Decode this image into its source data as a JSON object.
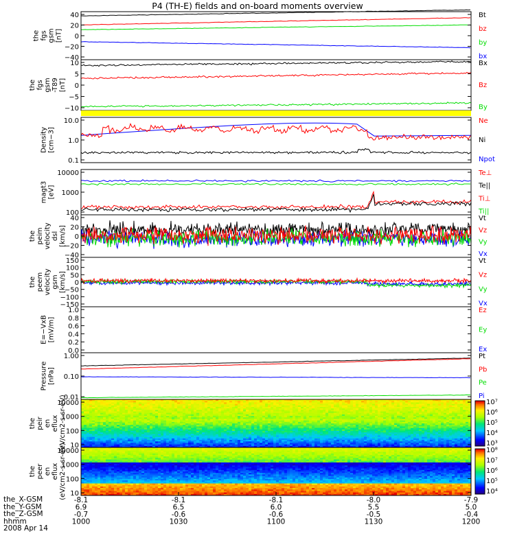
{
  "title": "P4 (TH-E) fields and on-board moments overview",
  "date_label": "2008 Apr 14",
  "colors": {
    "black": "#000000",
    "red": "#ff0000",
    "green": "#00dd00",
    "blue": "#0000ff",
    "yellow": "#ffff00"
  },
  "ephemeris": {
    "row_labels": [
      "the_X-GSM",
      "the_Y-GSM",
      "the_Z-GSM",
      "hhmm"
    ],
    "columns": [
      [
        "-8.1",
        "6.9",
        "-0.7",
        "1000"
      ],
      [
        "-8.1",
        "6.5",
        "-0.6",
        "1030"
      ],
      [
        "-8.1",
        "6.0",
        "-0.6",
        "1100"
      ],
      [
        "-8.0",
        "5.5",
        "-0.5",
        "1130"
      ],
      [
        "-7.9",
        "5.0",
        "-0.4",
        "1200"
      ]
    ]
  },
  "chart_data": [
    {
      "type": "line",
      "ylabel": "the fgs gsm [nT]",
      "yticks": [
        "40",
        "20",
        "0",
        "−20",
        "−40"
      ],
      "ylim": [
        -40,
        40
      ],
      "x": [
        "1000",
        "1200"
      ],
      "series": [
        {
          "name": "Bt",
          "color": "black",
          "values": [
            33,
            43
          ]
        },
        {
          "name": "bz",
          "color": "red",
          "values": [
            18,
            30
          ]
        },
        {
          "name": "by",
          "color": "green",
          "values": [
            10,
            18
          ]
        },
        {
          "name": "bx",
          "color": "blue",
          "values": [
            -10,
            -20
          ]
        }
      ]
    },
    {
      "type": "line",
      "ylabel": "the fgs gsm -T89 [nT]",
      "yticks": [
        "10",
        "5",
        "0",
        "−5",
        "−10"
      ],
      "ylim": [
        -13,
        14
      ],
      "series": [
        {
          "name": "Bx",
          "color": "black",
          "values": [
            11,
            13
          ]
        },
        {
          "name": "Bz",
          "color": "red",
          "values": [
            4,
            7
          ]
        },
        {
          "name": "By",
          "color": "green",
          "values": [
            -11,
            -9
          ]
        }
      ]
    },
    {
      "type": "line",
      "ylabel": "Density [cm−3]",
      "scale": "log",
      "yticks": [
        "10.0",
        "1.0",
        "0.1"
      ],
      "series": [
        {
          "name": "Ne",
          "color": "red"
        },
        {
          "name": "Ni",
          "color": "black"
        },
        {
          "name": "Npot",
          "color": "blue"
        }
      ]
    },
    {
      "type": "line",
      "ylabel": "magt3 [eV]",
      "scale": "log",
      "yticks": [
        "10000",
        "1000",
        "100"
      ],
      "series": [
        {
          "name": "Te⊥",
          "color": "red"
        },
        {
          "name": "Te||",
          "color": "black"
        },
        {
          "name": "Ti⊥",
          "color": "red"
        },
        {
          "name": "Ti||",
          "color": "green"
        }
      ]
    },
    {
      "type": "line",
      "ylabel": "the peim velocity dsl [km/s]",
      "yticks": [
        "40",
        "20",
        "0",
        "−20",
        "−40"
      ],
      "ylim": [
        -40,
        40
      ],
      "series": [
        {
          "name": "Vt",
          "color": "black"
        },
        {
          "name": "Vz",
          "color": "red"
        },
        {
          "name": "Vy",
          "color": "green"
        },
        {
          "name": "Vx",
          "color": "blue"
        }
      ]
    },
    {
      "type": "line",
      "ylabel": "the peem velocity gsm [km/s]",
      "yticks": [
        "150",
        "100",
        "50",
        "0",
        "−50",
        "−100",
        "−150"
      ],
      "ylim": [
        -150,
        150
      ],
      "series": [
        {
          "name": "Vt",
          "color": "black"
        },
        {
          "name": "Vz",
          "color": "red"
        },
        {
          "name": "Vy",
          "color": "green"
        },
        {
          "name": "Vx",
          "color": "blue"
        }
      ]
    },
    {
      "type": "line",
      "ylabel": "E=−VxB [mV/m]",
      "yticks": [
        "1.0",
        "0.8",
        "0.6",
        "0.4",
        "0.2",
        "0.0"
      ],
      "ylim": [
        0,
        1
      ],
      "series": [
        {
          "name": "Ez",
          "color": "red"
        },
        {
          "name": "Ey",
          "color": "green"
        },
        {
          "name": "Ex",
          "color": "blue"
        }
      ]
    },
    {
      "type": "line",
      "ylabel": "Pressure [nPa]",
      "scale": "log",
      "yticks": [
        "1.00",
        "0.10",
        "0.01"
      ],
      "series": [
        {
          "name": "Pt",
          "color": "black",
          "values": [
            0.35,
            0.8
          ]
        },
        {
          "name": "Pb",
          "color": "red",
          "values": [
            0.25,
            0.75
          ]
        },
        {
          "name": "Pe",
          "color": "green",
          "values": [
            0.012,
            0.016
          ]
        },
        {
          "name": "Pi",
          "color": "blue",
          "values": [
            0.11,
            0.1
          ]
        }
      ]
    },
    {
      "type": "heatmap",
      "ylabel": "the peir en eflux (eV/cm2-s-sr-eV)",
      "yticks": [
        "10000",
        "1000",
        "100",
        "10"
      ],
      "colorbar": [
        "10⁷",
        "10⁶",
        "10⁵",
        "10⁴",
        "10³"
      ]
    },
    {
      "type": "heatmap",
      "ylabel": "the peer en eflux (eV/cm2-s-sr-eV)",
      "yticks": [
        "10000",
        "1000",
        "100",
        "10"
      ],
      "colorbar": [
        "10⁸",
        "10⁷",
        "10⁶",
        "10⁵",
        "10⁴"
      ]
    }
  ]
}
